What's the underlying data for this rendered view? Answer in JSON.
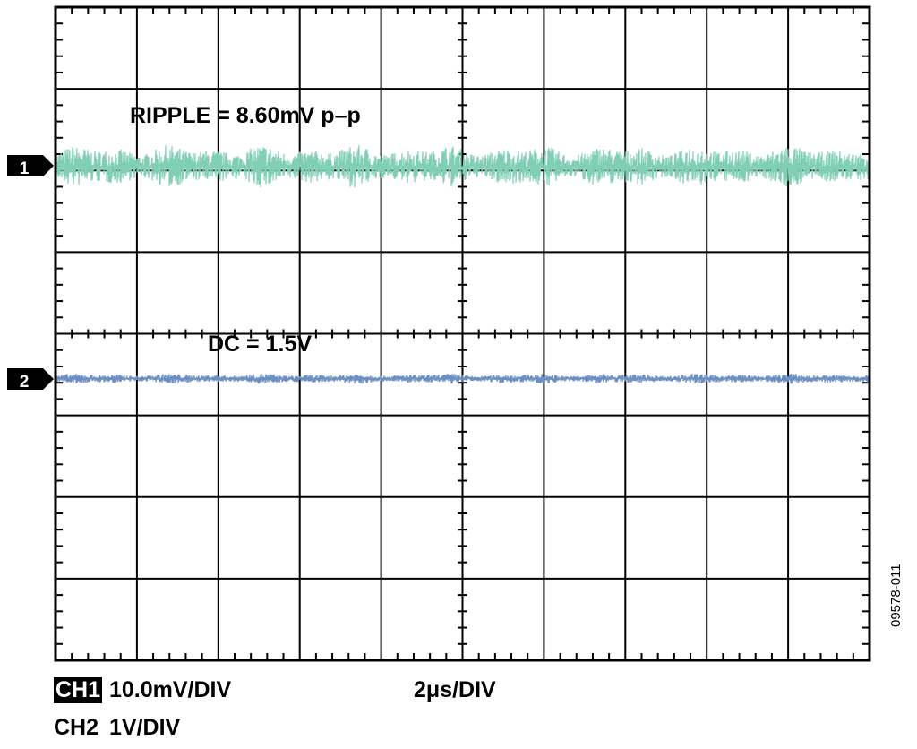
{
  "chart_data": {
    "type": "line",
    "title": "",
    "grid": true,
    "divisions": {
      "horizontal": 10,
      "vertical": 8
    },
    "xlim_us": [
      0,
      20
    ],
    "series": [
      {
        "channel": "1",
        "marker": "1",
        "color": "#80cfb4",
        "scale": "10.0mV/DIV",
        "ripple_mv_pp": 8.6,
        "level_div_from_top": 1.95
      },
      {
        "channel": "2",
        "marker": "2",
        "color": "#6b8fc2",
        "scale": "1V/DIV",
        "dc_v": 1.5,
        "level_div_from_top": 4.55
      }
    ],
    "annotations": {
      "ripple": "RIPPLE = 8.60mV p–p",
      "dc": "DC = 1.5V"
    },
    "footer": {
      "ch1_label": "CH1",
      "ch1_scale": "10.0mV/DIV",
      "timebase": "2μs/DIV",
      "ch2_label": "CH2",
      "ch2_scale": "1V/DIV"
    },
    "figure_id": "09578-011"
  }
}
